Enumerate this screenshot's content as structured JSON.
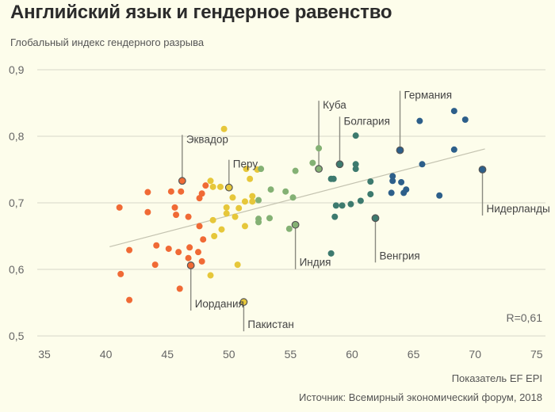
{
  "chart_data": {
    "type": "scatter",
    "title": "Английский язык и гендерное равенство",
    "ylabel": "Глобальный индекс гендерного разрыва",
    "xlabel": "Показатель EF EPI",
    "source": "Источник: Всемирный экономический форум, 2018",
    "correlation_label": "R=0,61",
    "xlim": [
      35,
      75
    ],
    "ylim": [
      0.5,
      0.9
    ],
    "x_ticks": [
      {
        "value": 35,
        "label": "35"
      },
      {
        "value": 40,
        "label": "40"
      },
      {
        "value": 45,
        "label": "45"
      },
      {
        "value": 50,
        "label": "50"
      },
      {
        "value": 55,
        "label": "55"
      },
      {
        "value": 60,
        "label": "60"
      },
      {
        "value": 65,
        "label": "65"
      },
      {
        "value": 70,
        "label": "70"
      },
      {
        "value": 75,
        "label": "75"
      }
    ],
    "y_ticks": [
      {
        "value": 0.5,
        "label": "0,5"
      },
      {
        "value": 0.6,
        "label": "0,6"
      },
      {
        "value": 0.7,
        "label": "0,7"
      },
      {
        "value": 0.8,
        "label": "0,8"
      },
      {
        "value": 0.9,
        "label": "0,9"
      }
    ],
    "grid": "horizontal",
    "trend_line": {
      "x": [
        40.3,
        70.8
      ],
      "y": [
        0.634,
        0.781
      ]
    },
    "colors": {
      "orange": "#f06a35",
      "yellow": "#e6c73a",
      "lightgreen": "#84b174",
      "teal": "#3d7a6e",
      "blue": "#2d5f8a",
      "background": "#fdfdeb",
      "grid": "#e0dfd0",
      "trend": "#c4c3b0",
      "leader": "#8a8a80"
    },
    "series": [
      {
        "name": "orange",
        "points": [
          [
            41.1,
            0.693
          ],
          [
            43.4,
            0.716
          ],
          [
            45.3,
            0.717
          ],
          [
            46.1,
            0.717
          ],
          [
            48.1,
            0.726
          ],
          [
            47.8,
            0.714
          ],
          [
            47.6,
            0.707
          ],
          [
            43.4,
            0.686
          ],
          [
            45.6,
            0.693
          ],
          [
            45.7,
            0.682
          ],
          [
            46.7,
            0.679
          ],
          [
            47.6,
            0.665
          ],
          [
            47.9,
            0.645
          ],
          [
            45.1,
            0.631
          ],
          [
            45.9,
            0.626
          ],
          [
            46.8,
            0.633
          ],
          [
            47.5,
            0.626
          ],
          [
            41.9,
            0.629
          ],
          [
            44.1,
            0.636
          ],
          [
            47.8,
            0.612
          ],
          [
            44.0,
            0.607
          ],
          [
            41.2,
            0.593
          ],
          [
            46.7,
            0.617
          ],
          [
            46.0,
            0.571
          ],
          [
            41.9,
            0.554
          ]
        ]
      },
      {
        "name": "yellow",
        "points": [
          [
            49.6,
            0.811
          ],
          [
            51.4,
            0.751
          ],
          [
            52.3,
            0.75
          ],
          [
            51.7,
            0.736
          ],
          [
            48.5,
            0.733
          ],
          [
            48.7,
            0.724
          ],
          [
            49.3,
            0.724
          ],
          [
            50.3,
            0.708
          ],
          [
            51.9,
            0.71
          ],
          [
            51.3,
            0.702
          ],
          [
            51.9,
            0.702
          ],
          [
            50.8,
            0.692
          ],
          [
            49.8,
            0.693
          ],
          [
            49.8,
            0.684
          ],
          [
            50.5,
            0.679
          ],
          [
            48.7,
            0.674
          ],
          [
            51.3,
            0.665
          ],
          [
            49.4,
            0.66
          ],
          [
            48.8,
            0.65
          ],
          [
            50.7,
            0.607
          ],
          [
            48.5,
            0.591
          ]
        ]
      },
      {
        "name": "lightgreen",
        "points": [
          [
            57.3,
            0.782
          ],
          [
            56.8,
            0.76
          ],
          [
            55.4,
            0.748
          ],
          [
            52.6,
            0.751
          ],
          [
            53.4,
            0.72
          ],
          [
            54.6,
            0.717
          ],
          [
            55.2,
            0.708
          ],
          [
            52.4,
            0.704
          ],
          [
            52.4,
            0.676
          ],
          [
            52.4,
            0.671
          ],
          [
            53.3,
            0.677
          ],
          [
            54.9,
            0.661
          ]
        ]
      },
      {
        "name": "teal",
        "points": [
          [
            60.3,
            0.801
          ],
          [
            60.3,
            0.758
          ],
          [
            60.3,
            0.751
          ],
          [
            58.3,
            0.736
          ],
          [
            58.5,
            0.736
          ],
          [
            61.5,
            0.732
          ],
          [
            61.5,
            0.713
          ],
          [
            60.7,
            0.703
          ],
          [
            59.9,
            0.698
          ],
          [
            59.2,
            0.696
          ],
          [
            58.7,
            0.696
          ],
          [
            58.6,
            0.679
          ],
          [
            58.3,
            0.624
          ]
        ]
      },
      {
        "name": "blue",
        "points": [
          [
            68.3,
            0.838
          ],
          [
            69.2,
            0.825
          ],
          [
            65.5,
            0.823
          ],
          [
            68.3,
            0.78
          ],
          [
            65.7,
            0.758
          ],
          [
            63.3,
            0.74
          ],
          [
            63.3,
            0.733
          ],
          [
            64.0,
            0.731
          ],
          [
            64.4,
            0.72
          ],
          [
            63.2,
            0.715
          ],
          [
            64.2,
            0.715
          ],
          [
            67.1,
            0.711
          ]
        ]
      }
    ],
    "annotated": [
      {
        "label": "Эквадор",
        "series": "orange",
        "x": 46.2,
        "y": 0.733,
        "dir": "up"
      },
      {
        "label": "Перу",
        "series": "yellow",
        "x": 50.0,
        "y": 0.723,
        "dir": "up"
      },
      {
        "label": "Куба",
        "series": "lightgreen",
        "x": 57.3,
        "y": 0.751,
        "dir": "up"
      },
      {
        "label": "Болгария",
        "series": "teal",
        "x": 59.0,
        "y": 0.758,
        "dir": "up"
      },
      {
        "label": "Германия",
        "series": "blue",
        "x": 63.9,
        "y": 0.779,
        "dir": "up"
      },
      {
        "label": "Нидерланды",
        "series": "blue",
        "x": 70.6,
        "y": 0.75,
        "dir": "down"
      },
      {
        "label": "Венгрия",
        "series": "teal",
        "x": 61.9,
        "y": 0.677,
        "dir": "down"
      },
      {
        "label": "Индия",
        "series": "lightgreen",
        "x": 55.4,
        "y": 0.667,
        "dir": "down"
      },
      {
        "label": "Иордания",
        "series": "orange",
        "x": 46.9,
        "y": 0.606,
        "dir": "down"
      },
      {
        "label": "Пакистан",
        "series": "yellow",
        "x": 51.2,
        "y": 0.551,
        "dir": "down"
      }
    ]
  }
}
